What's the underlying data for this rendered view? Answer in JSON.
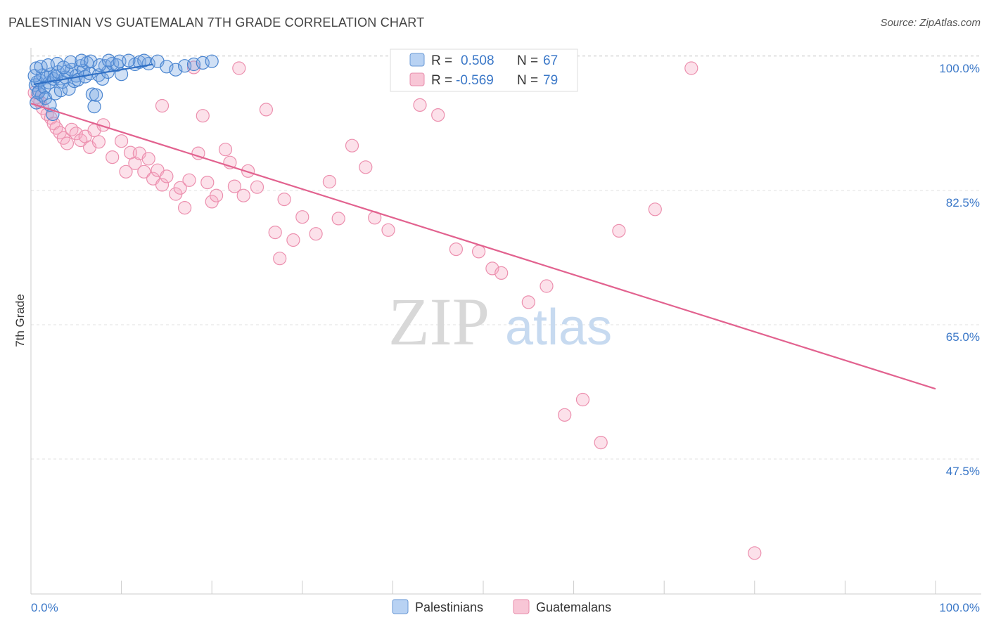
{
  "header": {
    "title": "PALESTINIAN VS GUATEMALAN 7TH GRADE CORRELATION CHART",
    "source": "Source: ZipAtlas.com"
  },
  "watermark": {
    "zip": "ZIP",
    "atlas": "atlas"
  },
  "legend": {
    "r_label": "R =",
    "n_label": "N =",
    "rows": [
      {
        "r": "0.508",
        "n": "67"
      },
      {
        "r": "-0.569",
        "n": "79"
      }
    ]
  },
  "chart_data": {
    "type": "scatter",
    "title": "PALESTINIAN VS GUATEMALAN 7TH GRADE CORRELATION CHART",
    "xlabel": "",
    "ylabel": "7th Grade",
    "xlim": [
      0,
      100
    ],
    "ylim": [
      31.5,
      102
    ],
    "x_tick_labels": [
      "0.0%",
      "100.0%"
    ],
    "y_ticks": [
      47.5,
      65.0,
      82.5,
      100.0
    ],
    "y_tick_labels": [
      "47.5%",
      "65.0%",
      "82.5%",
      "100.0%"
    ],
    "grid": true,
    "legend_position": "bottom-center",
    "colors": {
      "palestinians": "#3b78c8",
      "guatemalans": "#e8709a"
    },
    "series": [
      {
        "name": "Palestinians",
        "color": "#3b78c8",
        "r": 0.508,
        "n": 67,
        "trend": [
          [
            0.3,
            97.9
          ],
          [
            13.5,
            100.5
          ]
        ],
        "points": [
          [
            0.5,
            97.8
          ],
          [
            0.7,
            98.2
          ],
          [
            0.9,
            97.0
          ],
          [
            1.0,
            98.4
          ],
          [
            1.2,
            96.5
          ],
          [
            0.6,
            95.5
          ],
          [
            0.8,
            96.8
          ],
          [
            1.5,
            97.5
          ],
          [
            1.8,
            98.8
          ],
          [
            2.0,
            98.1
          ],
          [
            2.2,
            99.2
          ],
          [
            2.5,
            98.6
          ],
          [
            2.8,
            98.9
          ],
          [
            3.0,
            99.5
          ],
          [
            1.3,
            99.1
          ],
          [
            1.6,
            96.1
          ],
          [
            2.1,
            95.2
          ],
          [
            2.4,
            94.0
          ],
          [
            2.7,
            96.7
          ],
          [
            3.3,
            97.1
          ],
          [
            3.5,
            98.2
          ],
          [
            3.8,
            98.8
          ],
          [
            4.0,
            99.6
          ],
          [
            4.2,
            97.3
          ],
          [
            4.5,
            99.8
          ],
          [
            4.8,
            98.3
          ],
          [
            5.0,
            99.0
          ],
          [
            5.2,
            98.5
          ],
          [
            5.5,
            100.3
          ],
          [
            5.8,
            99.7
          ],
          [
            6.0,
            98.9
          ],
          [
            6.2,
            100.7
          ],
          [
            6.5,
            99.3
          ],
          [
            6.8,
            96.6
          ],
          [
            7.0,
            95.0
          ],
          [
            7.2,
            96.5
          ],
          [
            7.5,
            99.1
          ],
          [
            7.9,
            98.6
          ],
          [
            8.2,
            100.3
          ],
          [
            8.5,
            99.5
          ],
          [
            9.0,
            100.6
          ],
          [
            9.5,
            100.4
          ],
          [
            10.0,
            99.2
          ],
          [
            11.5,
            100.5
          ],
          [
            12.0,
            100.8
          ],
          [
            13.0,
            100.6
          ],
          [
            14.0,
            100.9
          ],
          [
            15.0,
            100.2
          ],
          [
            16.0,
            99.8
          ],
          [
            17.0,
            100.3
          ],
          [
            18.0,
            100.5
          ],
          [
            19.0,
            100.7
          ],
          [
            20.0,
            100.9
          ],
          [
            0.4,
            99.0
          ],
          [
            0.6,
            100.0
          ],
          [
            1.1,
            100.2
          ],
          [
            1.9,
            100.4
          ],
          [
            2.9,
            100.6
          ],
          [
            3.6,
            100.1
          ],
          [
            4.4,
            100.8
          ],
          [
            5.6,
            101.0
          ],
          [
            6.6,
            100.9
          ],
          [
            7.6,
            100.4
          ],
          [
            8.6,
            101.0
          ],
          [
            9.8,
            100.9
          ],
          [
            10.8,
            101.0
          ],
          [
            12.5,
            101.0
          ]
        ]
      },
      {
        "name": "Guatemalans",
        "color": "#e8709a",
        "r": -0.569,
        "n": 79,
        "trend": [
          [
            0.0,
            95.4
          ],
          [
            100.0,
            58.2
          ]
        ],
        "points": [
          [
            0.4,
            96.8
          ],
          [
            0.7,
            96.2
          ],
          [
            1.0,
            95.6
          ],
          [
            1.3,
            94.8
          ],
          [
            1.8,
            94.0
          ],
          [
            2.2,
            93.5
          ],
          [
            2.5,
            92.8
          ],
          [
            2.8,
            92.2
          ],
          [
            3.2,
            91.6
          ],
          [
            3.6,
            90.9
          ],
          [
            4.0,
            90.2
          ],
          [
            4.5,
            92.0
          ],
          [
            5.0,
            91.5
          ],
          [
            5.5,
            90.6
          ],
          [
            6.0,
            91.1
          ],
          [
            6.5,
            89.7
          ],
          [
            7.0,
            91.9
          ],
          [
            7.5,
            90.4
          ],
          [
            8.0,
            92.6
          ],
          [
            9.0,
            88.4
          ],
          [
            10.0,
            90.5
          ],
          [
            10.5,
            86.5
          ],
          [
            11.0,
            89.0
          ],
          [
            11.5,
            87.6
          ],
          [
            12.0,
            88.9
          ],
          [
            12.5,
            86.5
          ],
          [
            13.0,
            88.2
          ],
          [
            13.5,
            85.6
          ],
          [
            14.0,
            86.7
          ],
          [
            14.5,
            84.8
          ],
          [
            15.0,
            85.9
          ],
          [
            16.0,
            83.6
          ],
          [
            16.5,
            84.4
          ],
          [
            17.0,
            81.8
          ],
          [
            17.5,
            85.4
          ],
          [
            18.5,
            88.9
          ],
          [
            19.0,
            93.8
          ],
          [
            19.5,
            85.1
          ],
          [
            20.0,
            82.6
          ],
          [
            20.5,
            83.4
          ],
          [
            21.5,
            89.4
          ],
          [
            22.0,
            87.7
          ],
          [
            22.5,
            84.6
          ],
          [
            23.5,
            83.4
          ],
          [
            24.0,
            86.6
          ],
          [
            25.0,
            84.5
          ],
          [
            26.0,
            94.6
          ],
          [
            27.0,
            78.6
          ],
          [
            27.5,
            75.2
          ],
          [
            28.0,
            82.9
          ],
          [
            29.0,
            77.6
          ],
          [
            30.0,
            80.6
          ],
          [
            31.5,
            78.4
          ],
          [
            33.0,
            85.2
          ],
          [
            34.0,
            80.4
          ],
          [
            35.5,
            89.9
          ],
          [
            37.0,
            87.1
          ],
          [
            38.0,
            80.5
          ],
          [
            39.5,
            78.9
          ],
          [
            41.0,
            99.9
          ],
          [
            43.0,
            95.2
          ],
          [
            45.0,
            93.9
          ],
          [
            47.0,
            76.4
          ],
          [
            49.5,
            76.1
          ],
          [
            51.0,
            73.9
          ],
          [
            52.0,
            73.3
          ],
          [
            55.0,
            69.5
          ],
          [
            57.0,
            71.6
          ],
          [
            59.0,
            54.8
          ],
          [
            61.0,
            56.8
          ],
          [
            63.0,
            51.2
          ],
          [
            65.0,
            78.8
          ],
          [
            69.0,
            81.6
          ],
          [
            73.0,
            100.0
          ],
          [
            80.0,
            36.8
          ],
          [
            14.5,
            95.1
          ],
          [
            18.0,
            100.1
          ],
          [
            23.0,
            100.0
          ],
          [
            52.5,
            100.2
          ]
        ]
      }
    ]
  }
}
